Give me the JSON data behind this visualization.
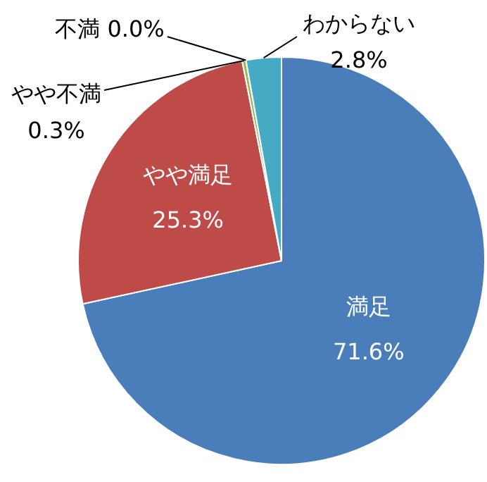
{
  "chart_data": {
    "type": "pie",
    "categories": [
      "満足",
      "やや満足",
      "やや不満",
      "不満",
      "わからない"
    ],
    "values": [
      71.6,
      25.3,
      0.3,
      0.0,
      2.8
    ],
    "value_labels": [
      "71.6%",
      "25.3%",
      "0.3%",
      "0.0%",
      "2.8%"
    ],
    "colors": [
      "#4a7ebb",
      "#be4b48",
      "#98b954",
      "#7d60a0",
      "#46aac5"
    ]
  }
}
